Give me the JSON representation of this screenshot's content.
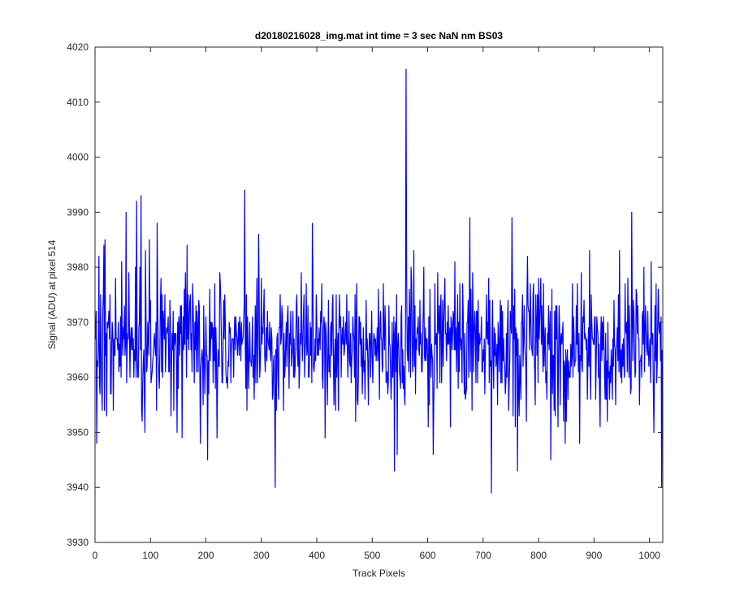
{
  "chart_data": {
    "type": "line",
    "title": "d20180216028_img.mat int time = 3 sec  NaN nm BS03",
    "xlabel": "Track Pixels",
    "ylabel": "Signal (ADU) at pixel 514",
    "xlim": [
      0,
      1024
    ],
    "ylim": [
      3930,
      4020
    ],
    "x_ticks": [
      0,
      100,
      200,
      300,
      400,
      500,
      600,
      700,
      800,
      900,
      1000
    ],
    "y_ticks": [
      3930,
      3940,
      3950,
      3960,
      3970,
      3980,
      3990,
      4000,
      4010,
      4020
    ],
    "grid": false,
    "line_color": "#0000ff",
    "noise_mean": 3966,
    "noise_seed": 20180216,
    "n_points": 1024,
    "spikes": [
      {
        "x": 3,
        "y": 3948
      },
      {
        "x": 7,
        "y": 3982
      },
      {
        "x": 16,
        "y": 3984
      },
      {
        "x": 18,
        "y": 3985
      },
      {
        "x": 33,
        "y": 3954
      },
      {
        "x": 56,
        "y": 3990
      },
      {
        "x": 75,
        "y": 3992
      },
      {
        "x": 83,
        "y": 3993
      },
      {
        "x": 90,
        "y": 3950
      },
      {
        "x": 112,
        "y": 3988
      },
      {
        "x": 148,
        "y": 3950
      },
      {
        "x": 157,
        "y": 3949
      },
      {
        "x": 166,
        "y": 3984
      },
      {
        "x": 203,
        "y": 3945
      },
      {
        "x": 220,
        "y": 3949
      },
      {
        "x": 270,
        "y": 3994
      },
      {
        "x": 295,
        "y": 3986
      },
      {
        "x": 325,
        "y": 3940
      },
      {
        "x": 392,
        "y": 3988
      },
      {
        "x": 415,
        "y": 3949
      },
      {
        "x": 470,
        "y": 3952
      },
      {
        "x": 540,
        "y": 3943
      },
      {
        "x": 545,
        "y": 3946
      },
      {
        "x": 561,
        "y": 4016
      },
      {
        "x": 575,
        "y": 3983
      },
      {
        "x": 610,
        "y": 3946
      },
      {
        "x": 676,
        "y": 3989
      },
      {
        "x": 715,
        "y": 3939
      },
      {
        "x": 752,
        "y": 3989
      },
      {
        "x": 762,
        "y": 3943
      },
      {
        "x": 822,
        "y": 3945
      },
      {
        "x": 874,
        "y": 3948
      },
      {
        "x": 968,
        "y": 3990
      },
      {
        "x": 1003,
        "y": 3981
      },
      {
        "x": 1012,
        "y": 3977
      },
      {
        "x": 1022,
        "y": 3940
      }
    ]
  }
}
